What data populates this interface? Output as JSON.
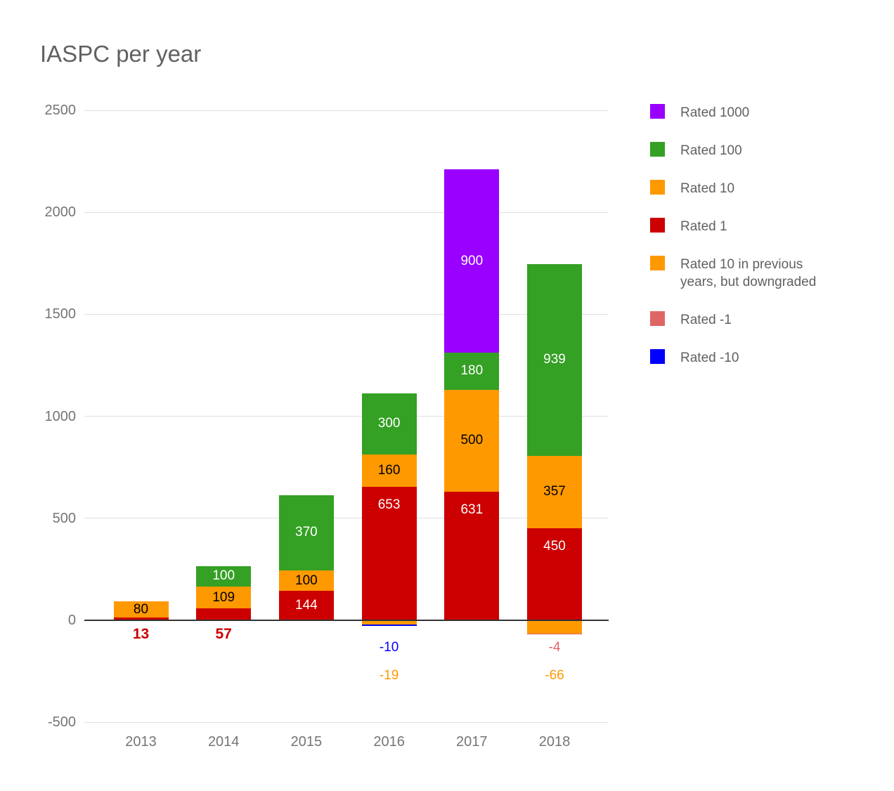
{
  "title": "IASPC per year",
  "legend": {
    "items": [
      {
        "label": "Rated 1000",
        "color": "#9900ff"
      },
      {
        "label": "Rated 100",
        "color": "#34a024"
      },
      {
        "label": "Rated 10",
        "color": "#ff9900"
      },
      {
        "label": "Rated 1",
        "color": "#cc0000"
      },
      {
        "label": "Rated 10 in previous years, but downgraded",
        "color": "#ff9900"
      },
      {
        "label": "Rated -1",
        "color": "#e06666"
      },
      {
        "label": "Rated -10",
        "color": "#0000ff"
      }
    ]
  },
  "axis": {
    "y_ticks": [
      2500,
      2000,
      1500,
      1000,
      500,
      0,
      -500
    ],
    "x_labels": [
      "2013",
      "2014",
      "2015",
      "2016",
      "2017",
      "2018"
    ]
  },
  "chart_data": {
    "type": "bar",
    "stacked": true,
    "title": "IASPC per year",
    "xlabel": "",
    "ylabel": "",
    "ylim": [
      -500,
      2500
    ],
    "gridlines": true,
    "legend_position": "right",
    "categories": [
      "2013",
      "2014",
      "2015",
      "2016",
      "2017",
      "2018"
    ],
    "series": [
      {
        "name": "Rated 1",
        "color": "#cc0000",
        "text_color": "#ffffff",
        "values": [
          13,
          57,
          144,
          653,
          631,
          450
        ]
      },
      {
        "name": "Rated 10",
        "color": "#ff9900",
        "text_color": "#000000",
        "values": [
          80,
          109,
          100,
          160,
          500,
          357
        ]
      },
      {
        "name": "Rated 100",
        "color": "#34a024",
        "text_color": "#ffffff",
        "values": [
          0,
          100,
          370,
          300,
          180,
          939
        ]
      },
      {
        "name": "Rated 1000",
        "color": "#9900ff",
        "text_color": "#ffffff",
        "values": [
          0,
          0,
          0,
          0,
          900,
          0
        ]
      },
      {
        "name": "Rated 10 in previous years, but downgraded",
        "color": "#ff9900",
        "text_color": "#000000",
        "values": [
          0,
          0,
          0,
          -19,
          0,
          -66
        ]
      },
      {
        "name": "Rated -1",
        "color": "#e06666",
        "text_color": "#ffffff",
        "values": [
          0,
          0,
          0,
          0,
          0,
          -4
        ]
      },
      {
        "name": "Rated -10",
        "color": "#0000ff",
        "text_color": "#ffffff",
        "values": [
          0,
          0,
          0,
          -10,
          0,
          0
        ]
      }
    ]
  }
}
